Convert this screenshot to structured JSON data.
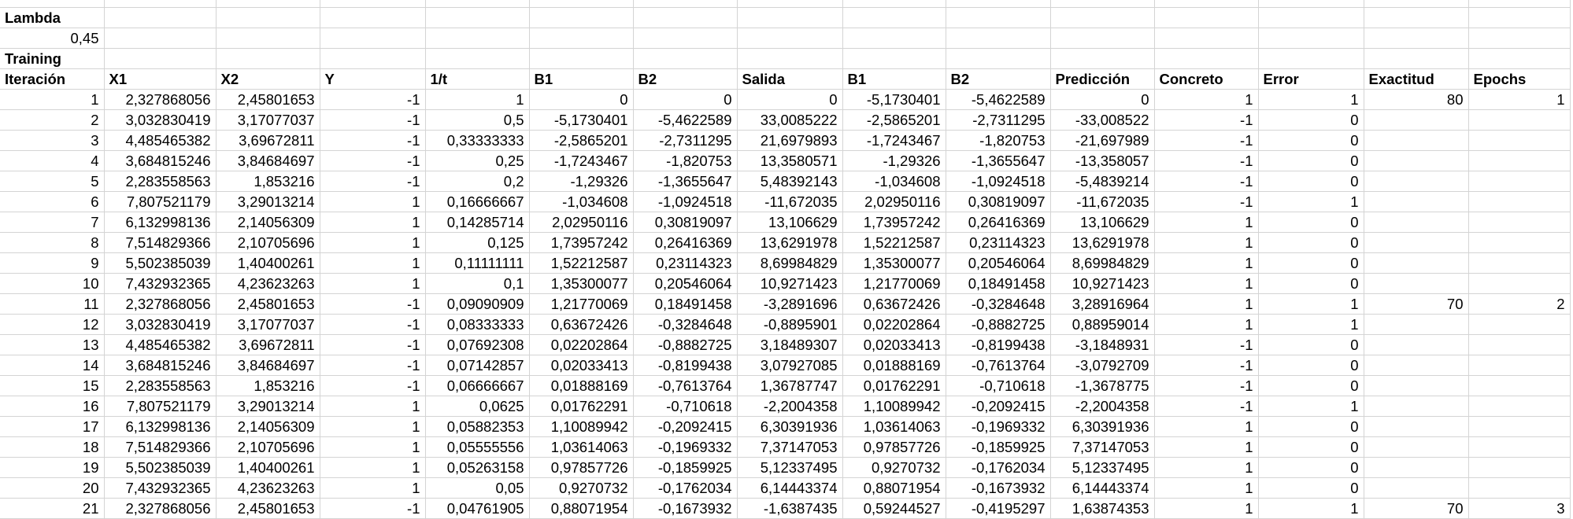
{
  "sheet": {
    "labels": {
      "lambda": "Lambda",
      "lambda_value": "0,45",
      "training": "Training"
    },
    "headers": [
      "Iteración",
      "X1",
      "X2",
      "Y",
      "1/t",
      "B1",
      "B2",
      "Salida",
      "B1",
      "B2",
      "Predicción",
      "Concreto",
      "Error",
      "Exactitud",
      "Epochs"
    ],
    "rows": [
      [
        "1",
        "2,327868056",
        "2,45801653",
        "-1",
        "1",
        "0",
        "0",
        "0",
        "-5,1730401",
        "-5,4622589",
        "0",
        "1",
        "1",
        "80",
        "1"
      ],
      [
        "2",
        "3,032830419",
        "3,17077037",
        "-1",
        "0,5",
        "-5,1730401",
        "-5,4622589",
        "33,0085222",
        "-2,5865201",
        "-2,7311295",
        "-33,008522",
        "-1",
        "0",
        "",
        ""
      ],
      [
        "3",
        "4,485465382",
        "3,69672811",
        "-1",
        "0,33333333",
        "-2,5865201",
        "-2,7311295",
        "21,6979893",
        "-1,7243467",
        "-1,820753",
        "-21,697989",
        "-1",
        "0",
        "",
        ""
      ],
      [
        "4",
        "3,684815246",
        "3,84684697",
        "-1",
        "0,25",
        "-1,7243467",
        "-1,820753",
        "13,3580571",
        "-1,29326",
        "-1,3655647",
        "-13,358057",
        "-1",
        "0",
        "",
        ""
      ],
      [
        "5",
        "2,283558563",
        "1,853216",
        "-1",
        "0,2",
        "-1,29326",
        "-1,3655647",
        "5,48392143",
        "-1,034608",
        "-1,0924518",
        "-5,4839214",
        "-1",
        "0",
        "",
        ""
      ],
      [
        "6",
        "7,807521179",
        "3,29013214",
        "1",
        "0,16666667",
        "-1,034608",
        "-1,0924518",
        "-11,672035",
        "2,02950116",
        "0,30819097",
        "-11,672035",
        "-1",
        "1",
        "",
        ""
      ],
      [
        "7",
        "6,132998136",
        "2,14056309",
        "1",
        "0,14285714",
        "2,02950116",
        "0,30819097",
        "13,106629",
        "1,73957242",
        "0,26416369",
        "13,106629",
        "1",
        "0",
        "",
        ""
      ],
      [
        "8",
        "7,514829366",
        "2,10705696",
        "1",
        "0,125",
        "1,73957242",
        "0,26416369",
        "13,6291978",
        "1,52212587",
        "0,23114323",
        "13,6291978",
        "1",
        "0",
        "",
        ""
      ],
      [
        "9",
        "5,502385039",
        "1,40400261",
        "1",
        "0,11111111",
        "1,52212587",
        "0,23114323",
        "8,69984829",
        "1,35300077",
        "0,20546064",
        "8,69984829",
        "1",
        "0",
        "",
        ""
      ],
      [
        "10",
        "7,432932365",
        "4,23623263",
        "1",
        "0,1",
        "1,35300077",
        "0,20546064",
        "10,9271423",
        "1,21770069",
        "0,18491458",
        "10,9271423",
        "1",
        "0",
        "",
        ""
      ],
      [
        "11",
        "2,327868056",
        "2,45801653",
        "-1",
        "0,09090909",
        "1,21770069",
        "0,18491458",
        "-3,2891696",
        "0,63672426",
        "-0,3284648",
        "3,28916964",
        "1",
        "1",
        "70",
        "2"
      ],
      [
        "12",
        "3,032830419",
        "3,17077037",
        "-1",
        "0,08333333",
        "0,63672426",
        "-0,3284648",
        "-0,8895901",
        "0,02202864",
        "-0,8882725",
        "0,88959014",
        "1",
        "1",
        "",
        ""
      ],
      [
        "13",
        "4,485465382",
        "3,69672811",
        "-1",
        "0,07692308",
        "0,02202864",
        "-0,8882725",
        "3,18489307",
        "0,02033413",
        "-0,8199438",
        "-3,1848931",
        "-1",
        "0",
        "",
        ""
      ],
      [
        "14",
        "3,684815246",
        "3,84684697",
        "-1",
        "0,07142857",
        "0,02033413",
        "-0,8199438",
        "3,07927085",
        "0,01888169",
        "-0,7613764",
        "-3,0792709",
        "-1",
        "0",
        "",
        ""
      ],
      [
        "15",
        "2,283558563",
        "1,853216",
        "-1",
        "0,06666667",
        "0,01888169",
        "-0,7613764",
        "1,36787747",
        "0,01762291",
        "-0,710618",
        "-1,3678775",
        "-1",
        "0",
        "",
        ""
      ],
      [
        "16",
        "7,807521179",
        "3,29013214",
        "1",
        "0,0625",
        "0,01762291",
        "-0,710618",
        "-2,2004358",
        "1,10089942",
        "-0,2092415",
        "-2,2004358",
        "-1",
        "1",
        "",
        ""
      ],
      [
        "17",
        "6,132998136",
        "2,14056309",
        "1",
        "0,05882353",
        "1,10089942",
        "-0,2092415",
        "6,30391936",
        "1,03614063",
        "-0,1969332",
        "6,30391936",
        "1",
        "0",
        "",
        ""
      ],
      [
        "18",
        "7,514829366",
        "2,10705696",
        "1",
        "0,05555556",
        "1,03614063",
        "-0,1969332",
        "7,37147053",
        "0,97857726",
        "-0,1859925",
        "7,37147053",
        "1",
        "0",
        "",
        ""
      ],
      [
        "19",
        "5,502385039",
        "1,40400261",
        "1",
        "0,05263158",
        "0,97857726",
        "-0,1859925",
        "5,12337495",
        "0,9270732",
        "-0,1762034",
        "5,12337495",
        "1",
        "0",
        "",
        ""
      ],
      [
        "20",
        "7,432932365",
        "4,23623263",
        "1",
        "0,05",
        "0,9270732",
        "-0,1762034",
        "6,14443374",
        "0,88071954",
        "-0,1673932",
        "6,14443374",
        "1",
        "0",
        "",
        ""
      ],
      [
        "21",
        "2,327868056",
        "2,45801653",
        "-1",
        "0,04761905",
        "0,88071954",
        "-0,1673932",
        "-1,6387435",
        "0,59244527",
        "-0,4195297",
        "1,63874353",
        "1",
        "1",
        "70",
        "3"
      ]
    ]
  }
}
